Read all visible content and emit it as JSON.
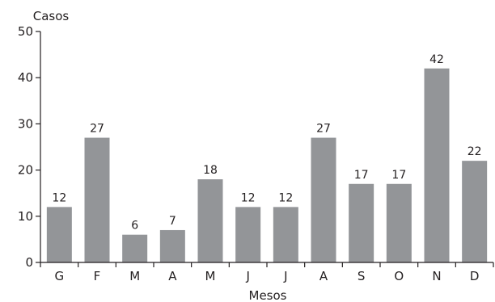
{
  "chart_data": {
    "type": "bar",
    "categories": [
      "G",
      "F",
      "M",
      "A",
      "M",
      "J",
      "J",
      "A",
      "S",
      "O",
      "N",
      "D"
    ],
    "values": [
      12,
      27,
      6,
      7,
      18,
      12,
      12,
      27,
      17,
      17,
      42,
      22
    ],
    "xlabel": "Mesos",
    "ylabel": "Casos",
    "ylim": [
      0,
      50
    ],
    "yticks": [
      0,
      10,
      20,
      30,
      40,
      50
    ],
    "grid": false,
    "bar_color": "#939598",
    "axis_color": "#231f20"
  }
}
